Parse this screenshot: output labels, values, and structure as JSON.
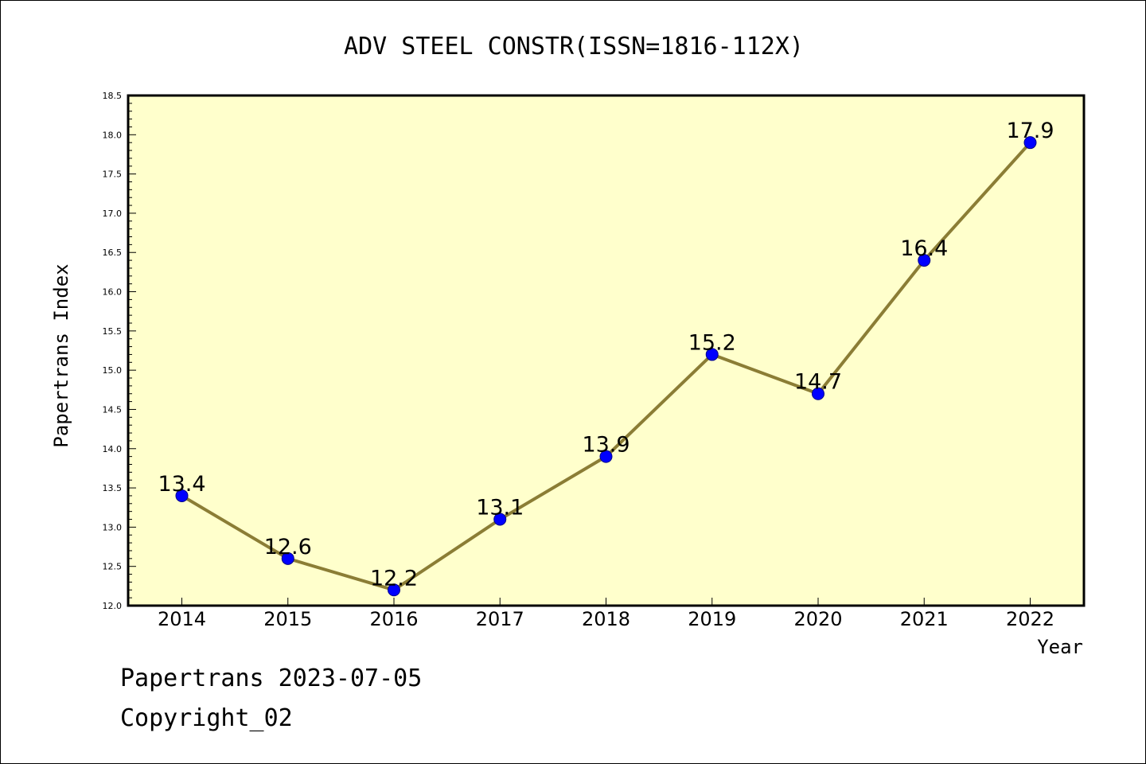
{
  "chart_data": {
    "type": "line",
    "title": "ADV STEEL CONSTR(ISSN=1816-112X)",
    "xlabel": "Year",
    "ylabel": "Papertrans Index",
    "categories": [
      "2014",
      "2015",
      "2016",
      "2017",
      "2018",
      "2019",
      "2020",
      "2021",
      "2022"
    ],
    "values": [
      13.4,
      12.6,
      12.2,
      13.1,
      13.9,
      15.2,
      14.7,
      16.4,
      17.9
    ],
    "data_labels": [
      "13.4",
      "12.6",
      "12.2",
      "13.1",
      "13.9",
      "15.2",
      "14.7",
      "16.4",
      "17.9"
    ],
    "ylim": [
      12.0,
      18.5
    ],
    "yticks": [
      "12.0",
      "12.5",
      "13.0",
      "13.5",
      "14.0",
      "14.5",
      "15.0",
      "15.5",
      "16.0",
      "16.5",
      "17.0",
      "17.5",
      "18.0",
      "18.5"
    ],
    "grid": false,
    "colors": {
      "plot_background": "#ffffcc",
      "line": "#8b7d35",
      "marker": "#0000ff"
    }
  },
  "footer": {
    "line1": "Papertrans 2023-07-05",
    "line2": "Copyright_02"
  }
}
